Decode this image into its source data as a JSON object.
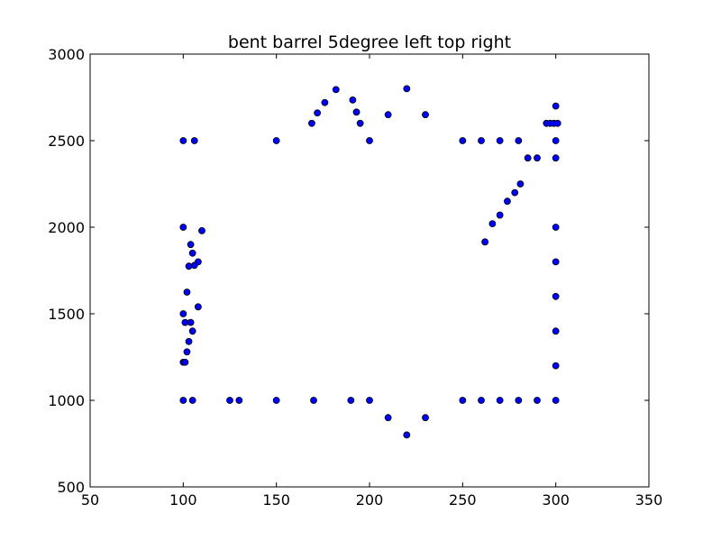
{
  "chart_data": {
    "type": "scatter",
    "title": "bent barrel 5degree left top right",
    "xlabel": "",
    "ylabel": "",
    "xlim": [
      50,
      350
    ],
    "ylim": [
      500,
      3000
    ],
    "xticks": [
      50,
      100,
      150,
      200,
      250,
      300,
      350
    ],
    "yticks": [
      500,
      1000,
      1500,
      2000,
      2500,
      3000
    ],
    "grid": false,
    "marker_color": "#0000ff",
    "series": [
      {
        "points": [
          [
            100,
            2500
          ],
          [
            106,
            2500
          ],
          [
            150,
            2500
          ],
          [
            100,
            2000
          ],
          [
            110,
            1980
          ],
          [
            104,
            1900
          ],
          [
            105,
            1850
          ],
          [
            108,
            1800
          ],
          [
            106,
            1780
          ],
          [
            103,
            1775
          ],
          [
            102,
            1625
          ],
          [
            108,
            1540
          ],
          [
            100,
            1500
          ],
          [
            101,
            1450
          ],
          [
            104,
            1450
          ],
          [
            105,
            1400
          ],
          [
            103,
            1340
          ],
          [
            102,
            1280
          ],
          [
            100,
            1220
          ],
          [
            101,
            1220
          ],
          [
            100,
            1000
          ],
          [
            105,
            1000
          ],
          [
            125,
            1000
          ],
          [
            130,
            1000
          ],
          [
            150,
            1000
          ],
          [
            170,
            1000
          ],
          [
            190,
            1000
          ],
          [
            200,
            1000
          ],
          [
            210,
            900
          ],
          [
            220,
            800
          ],
          [
            230,
            900
          ],
          [
            250,
            1000
          ],
          [
            260,
            1000
          ],
          [
            270,
            1000
          ],
          [
            280,
            1000
          ],
          [
            290,
            1000
          ],
          [
            300,
            1000
          ],
          [
            300,
            1200
          ],
          [
            300,
            1400
          ],
          [
            300,
            1600
          ],
          [
            300,
            1800
          ],
          [
            300,
            2000
          ],
          [
            262,
            1915
          ],
          [
            266,
            2020
          ],
          [
            270,
            2070
          ],
          [
            274,
            2150
          ],
          [
            278,
            2200
          ],
          [
            281,
            2250
          ],
          [
            285,
            2400
          ],
          [
            290,
            2400
          ],
          [
            300,
            2400
          ],
          [
            250,
            2500
          ],
          [
            260,
            2500
          ],
          [
            270,
            2500
          ],
          [
            280,
            2500
          ],
          [
            300,
            2500
          ],
          [
            295,
            2600
          ],
          [
            297,
            2600
          ],
          [
            299,
            2600
          ],
          [
            301,
            2600
          ],
          [
            300,
            2700
          ],
          [
            169,
            2600
          ],
          [
            172,
            2660
          ],
          [
            176,
            2720
          ],
          [
            182,
            2795
          ],
          [
            191,
            2735
          ],
          [
            193,
            2665
          ],
          [
            195,
            2600
          ],
          [
            200,
            2500
          ],
          [
            210,
            2650
          ],
          [
            220,
            2800
          ],
          [
            230,
            2650
          ]
        ]
      }
    ]
  }
}
